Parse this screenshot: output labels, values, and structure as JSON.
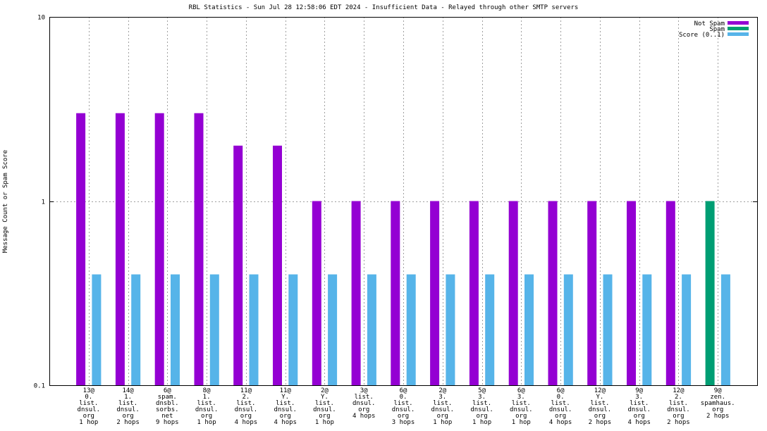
{
  "chart_data": {
    "type": "bar",
    "title": "RBL Statistics - Sun Jul 28 12:58:06 EDT 2024 - Insufficient Data - Relayed through other SMTP servers",
    "ylabel": "Message Count or Spam Score",
    "xlabel": "",
    "yscale": "log",
    "ylim": [
      0.1,
      10
    ],
    "yticks": [
      "0.1",
      "1",
      "10"
    ],
    "grid": true,
    "legend_position": "top-right",
    "categories": [
      [
        "13@",
        "0.",
        "list.",
        "dnsul.",
        "org",
        "1 hop"
      ],
      [
        "14@",
        "1.",
        "list.",
        "dnsul.",
        "org",
        "2 hops"
      ],
      [
        "6@",
        "spam.",
        "dnsbl.",
        "sorbs.",
        "net",
        "9 hops"
      ],
      [
        "8@",
        "1.",
        "list.",
        "dnsul.",
        "org",
        "1 hop"
      ],
      [
        "11@",
        "2.",
        "list.",
        "dnsul.",
        "org",
        "4 hops"
      ],
      [
        "11@",
        "Y.",
        "list.",
        "dnsul.",
        "org",
        "4 hops"
      ],
      [
        "2@",
        "Y.",
        "list.",
        "dnsul.",
        "org",
        "1 hop"
      ],
      [
        "3@",
        "list.",
        "dnsul.",
        "org",
        "4 hops"
      ],
      [
        "6@",
        "0.",
        "list.",
        "dnsul.",
        "org",
        "3 hops"
      ],
      [
        "2@",
        "3.",
        "list.",
        "dnsul.",
        "org",
        "1 hop"
      ],
      [
        "5@",
        "3.",
        "list.",
        "dnsul.",
        "org",
        "1 hop"
      ],
      [
        "6@",
        "3.",
        "list.",
        "dnsul.",
        "org",
        "1 hop"
      ],
      [
        "6@",
        "0.",
        "list.",
        "dnsul.",
        "org",
        "4 hops"
      ],
      [
        "12@",
        "Y.",
        "list.",
        "dnsul.",
        "org",
        "2 hops"
      ],
      [
        "9@",
        "3.",
        "list.",
        "dnsul.",
        "org",
        "4 hops"
      ],
      [
        "12@",
        "2.",
        "list.",
        "dnsul.",
        "org",
        "2 hops"
      ],
      [
        "9@",
        "zen.",
        "spamhaus.",
        "org",
        "2 hops"
      ]
    ],
    "series": [
      {
        "name": "Not Spam",
        "color": "#9400d3",
        "values": [
          3,
          3,
          3,
          3,
          2,
          2,
          1,
          1,
          1,
          1,
          1,
          1,
          1,
          1,
          1,
          1,
          null
        ]
      },
      {
        "name": "Spam",
        "color": "#009e73",
        "values": [
          null,
          null,
          null,
          null,
          null,
          null,
          null,
          null,
          null,
          null,
          null,
          null,
          null,
          null,
          null,
          null,
          1
        ]
      },
      {
        "name": "Score (0..1)",
        "color": "#56b4e9",
        "values": [
          0.4,
          0.4,
          0.4,
          0.4,
          0.4,
          0.4,
          0.4,
          0.4,
          0.4,
          0.4,
          0.4,
          0.4,
          0.4,
          0.4,
          0.4,
          0.4,
          0.4
        ]
      }
    ]
  }
}
